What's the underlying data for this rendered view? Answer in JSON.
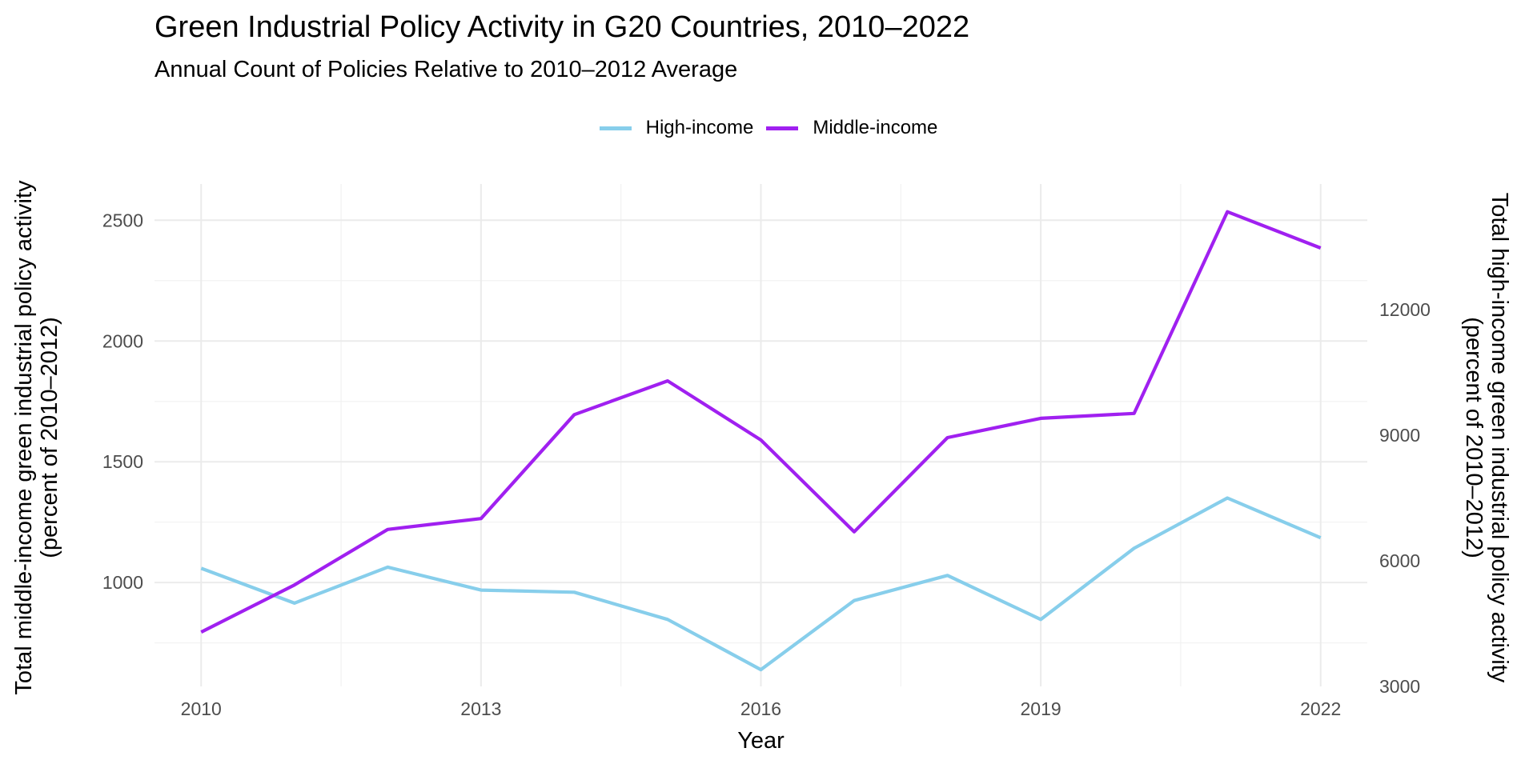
{
  "chart_data": {
    "type": "line",
    "title": "Green Industrial Policy Activity in G20 Countries, 2010–2022",
    "subtitle": "Annual Count of Policies Relative to 2010–2012 Average",
    "xlabel": "Year",
    "ylabel_left": "Total middle-income green industrial policy activity\n(percent of 2010–2012)",
    "ylabel_right": "Total high-income green industrial policy activity\n(percent of 2010–2012)",
    "x": [
      2010,
      2011,
      2012,
      2013,
      2014,
      2015,
      2016,
      2017,
      2018,
      2019,
      2020,
      2021,
      2022
    ],
    "x_ticks": [
      2010,
      2013,
      2016,
      2019,
      2022
    ],
    "y_left_ticks": [
      1000,
      1500,
      2000,
      2500
    ],
    "y_left_range": [
      570,
      2650
    ],
    "y_right_ticks": [
      3000,
      6000,
      9000,
      12000
    ],
    "y_right_range": [
      3000,
      15000
    ],
    "series": [
      {
        "name": "High-income",
        "axis": "right",
        "color": "#87CEEB",
        "values": [
          5820,
          4990,
          5850,
          5300,
          5250,
          4600,
          3400,
          5050,
          5650,
          4600,
          6300,
          7500,
          6550
        ]
      },
      {
        "name": "Middle-income",
        "axis": "left",
        "color": "#A020F0",
        "values": [
          795,
          990,
          1220,
          1265,
          1695,
          1835,
          1590,
          1210,
          1600,
          1680,
          1700,
          2535,
          2385
        ]
      }
    ],
    "grid": true,
    "legend_position": "top"
  }
}
